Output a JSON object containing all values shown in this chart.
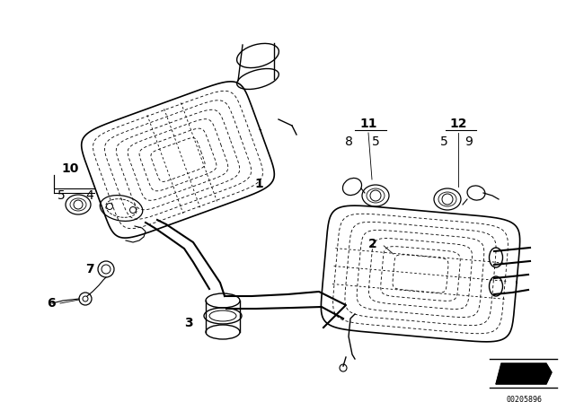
{
  "bg_color": "#ffffff",
  "line_color": "#000000",
  "fig_width": 6.4,
  "fig_height": 4.48,
  "dpi": 100,
  "part_number": "00205896"
}
